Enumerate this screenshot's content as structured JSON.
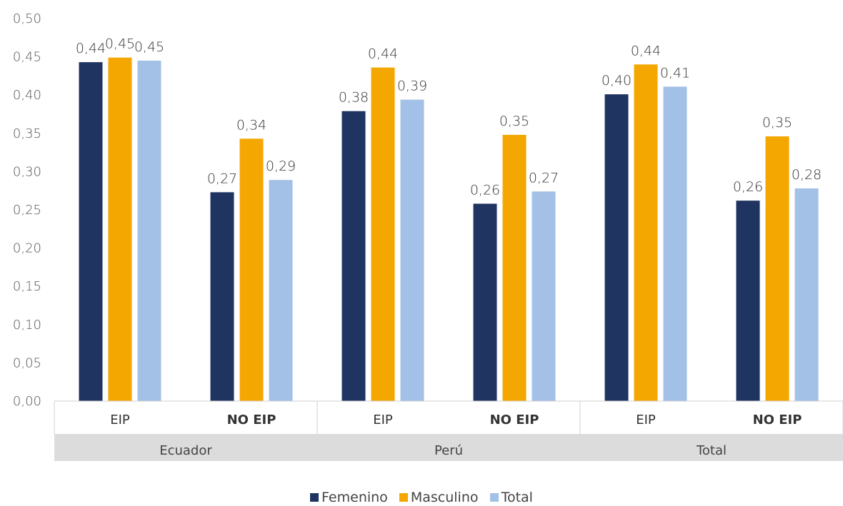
{
  "chart_data": {
    "type": "bar",
    "groups": [
      {
        "name": "Ecuador",
        "categories": [
          "EIP",
          "NO EIP"
        ]
      },
      {
        "name": "Perú",
        "categories": [
          "EIP",
          "NO EIP"
        ]
      },
      {
        "name": "Total",
        "categories": [
          "EIP",
          "NO EIP"
        ]
      }
    ],
    "categories": [
      "EIP",
      "NO EIP",
      "EIP",
      "NO EIP",
      "EIP",
      "NO EIP"
    ],
    "series": [
      {
        "name": "Femenino",
        "color": "#1f3461",
        "values": [
          0.443,
          0.273,
          0.379,
          0.258,
          0.401,
          0.262
        ],
        "labels": [
          "0,44",
          "0,27",
          "0,38",
          "0,26",
          "0,40",
          "0,26"
        ]
      },
      {
        "name": "Masculino",
        "color": "#f4a700",
        "values": [
          0.449,
          0.343,
          0.436,
          0.348,
          0.44,
          0.346
        ],
        "labels": [
          "0,45",
          "0,34",
          "0,44",
          "0,35",
          "0,44",
          "0,35"
        ]
      },
      {
        "name": "Total",
        "color": "#a3c1e6",
        "values": [
          0.445,
          0.289,
          0.394,
          0.274,
          0.411,
          0.278
        ],
        "labels": [
          "0,45",
          "0,29",
          "0,39",
          "0,27",
          "0,41",
          "0,28"
        ]
      }
    ],
    "ylim": [
      0,
      0.5
    ],
    "yticks": [
      "0,00",
      "0,05",
      "0,10",
      "0,15",
      "0,20",
      "0,25",
      "0,30",
      "0,35",
      "0,40",
      "0,45",
      "0,50"
    ],
    "grid": false,
    "legend_position": "bottom"
  }
}
